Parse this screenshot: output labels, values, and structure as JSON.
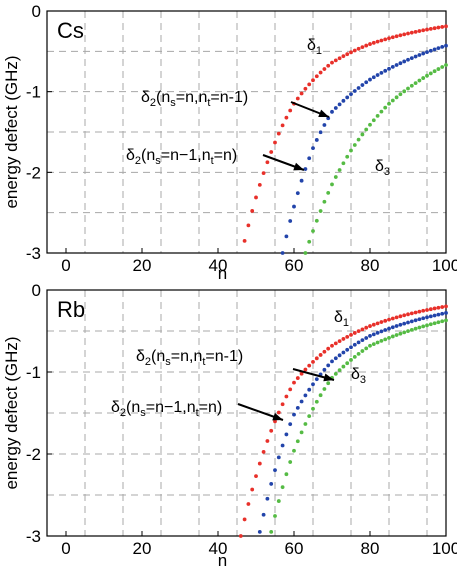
{
  "chart_data": [
    {
      "type": "scatter",
      "panel_label": "Cs",
      "xlabel": "n",
      "ylabel": "energy defect (GHz)",
      "xlim": [
        -5,
        100
      ],
      "ylim": [
        -3,
        0
      ],
      "xticks": [
        "0",
        "20",
        "40",
        "60",
        "80",
        "100"
      ],
      "yticks": [
        "0",
        "-1",
        "-2",
        "-3"
      ],
      "grid": true,
      "series": [
        {
          "name": "δ1",
          "color": "#e8302a",
          "n_start": 47,
          "n_end": 100,
          "x": [
            47,
            60,
            70,
            80,
            100
          ],
          "y": [
            -2.85,
            -1.15,
            -0.64,
            -0.41,
            -0.19
          ]
        },
        {
          "name": "δ2",
          "color": "#2244aa",
          "n_start": 57,
          "n_end": 100,
          "x": [
            57,
            65,
            70,
            80,
            100
          ],
          "y": [
            -3.0,
            -1.7,
            -1.25,
            -0.85,
            -0.43
          ]
        },
        {
          "name": "δ3",
          "color": "#55bb44",
          "n_start": 63,
          "n_end": 100,
          "x": [
            63,
            70,
            75,
            85,
            100
          ],
          "y": [
            -3.0,
            -2.15,
            -1.73,
            -1.15,
            -0.67
          ]
        }
      ],
      "annotations": [
        {
          "main": "δ",
          "sub": "1"
        },
        {
          "parts": [
            [
              "δ",
              ""
            ],
            [
              "2",
              "sub"
            ],
            [
              "(n",
              ""
            ],
            [
              "s",
              "sub"
            ],
            [
              "=n,n",
              ""
            ],
            [
              "t",
              "sub"
            ],
            [
              "=n-1)",
              ""
            ]
          ]
        },
        {
          "parts": [
            [
              "δ",
              ""
            ],
            [
              "2",
              "sub"
            ],
            [
              "(n",
              ""
            ],
            [
              "s",
              "sub"
            ],
            [
              "=n−1,n",
              ""
            ],
            [
              "t",
              "sub"
            ],
            [
              "=n)",
              ""
            ]
          ]
        },
        {
          "main": "δ",
          "sub": "3"
        }
      ]
    },
    {
      "type": "scatter",
      "panel_label": "Rb",
      "xlabel": "n",
      "ylabel": "energy defect (GHz)",
      "xlim": [
        -5,
        100
      ],
      "ylim": [
        -3,
        0
      ],
      "xticks": [
        "0",
        "20",
        "40",
        "60",
        "80",
        "100"
      ],
      "yticks": [
        "0",
        "-1",
        "-2",
        "-3"
      ],
      "grid": true,
      "series": [
        {
          "name": "δ1",
          "color": "#e8302a",
          "n_start": 46,
          "n_end": 100,
          "x": [
            46,
            60,
            70,
            80,
            100
          ],
          "y": [
            -3.0,
            -1.13,
            -0.68,
            -0.44,
            -0.2
          ]
        },
        {
          "name": "δ2",
          "color": "#2244aa",
          "n_start": 51,
          "n_end": 100,
          "x": [
            51,
            60,
            70,
            80,
            100
          ],
          "y": [
            -2.95,
            -1.52,
            -0.87,
            -0.56,
            -0.28
          ]
        },
        {
          "name": "δ3",
          "color": "#55bb44",
          "n_start": 54,
          "n_end": 100,
          "x": [
            54,
            60,
            70,
            80,
            100
          ],
          "y": [
            -2.95,
            -1.96,
            -1.07,
            -0.68,
            -0.37
          ]
        }
      ],
      "annotations": [
        {
          "main": "δ",
          "sub": "1"
        },
        {
          "parts": [
            [
              "δ",
              ""
            ],
            [
              "2",
              "sub"
            ],
            [
              "(n",
              ""
            ],
            [
              "s",
              "sub"
            ],
            [
              "=n,n",
              ""
            ],
            [
              "t",
              "sub"
            ],
            [
              "=n-1)",
              ""
            ]
          ]
        },
        {
          "parts": [
            [
              "δ",
              ""
            ],
            [
              "2",
              "sub"
            ],
            [
              "(n",
              ""
            ],
            [
              "s",
              "sub"
            ],
            [
              "=n−1,n",
              ""
            ],
            [
              "t",
              "sub"
            ],
            [
              "=n)",
              ""
            ]
          ]
        },
        {
          "main": "δ",
          "sub": "3"
        }
      ]
    }
  ]
}
